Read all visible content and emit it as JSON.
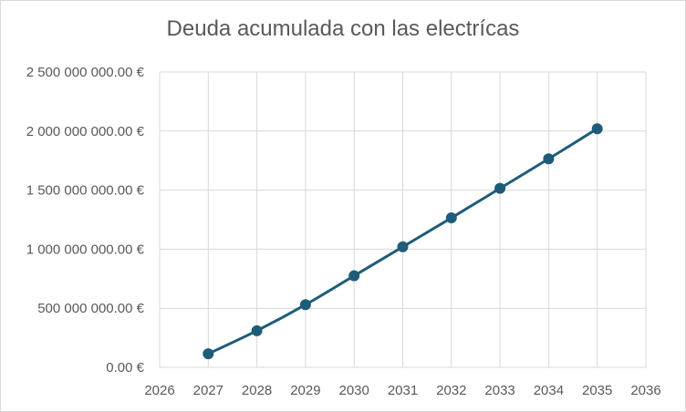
{
  "chart_data": {
    "type": "scatter",
    "title": "Deuda acumulada con las electrícas",
    "xlabel": "",
    "ylabel": "",
    "xlim": [
      2026,
      2036
    ],
    "ylim": [
      0,
      2500000000
    ],
    "x_ticks": [
      "2026",
      "2027",
      "2028",
      "2029",
      "2030",
      "2031",
      "2032",
      "2033",
      "2034",
      "2035",
      "2036"
    ],
    "y_ticks": [
      "0.00 €",
      "500 000 000.00 €",
      "1 000 000 000.00 €",
      "1 500 000 000.00 €",
      "2 000 000 000.00 €",
      "2 500 000 000.00 €"
    ],
    "grid": true,
    "legend": "none",
    "series": [
      {
        "color": "#1f5c7a",
        "x": [
          2027,
          2028,
          2029,
          2030,
          2031,
          2032,
          2033,
          2034,
          2035
        ],
        "y": [
          115000000,
          310000000,
          530000000,
          775000000,
          1020000000,
          1265000000,
          1515000000,
          1765000000,
          2020000000
        ]
      }
    ]
  }
}
